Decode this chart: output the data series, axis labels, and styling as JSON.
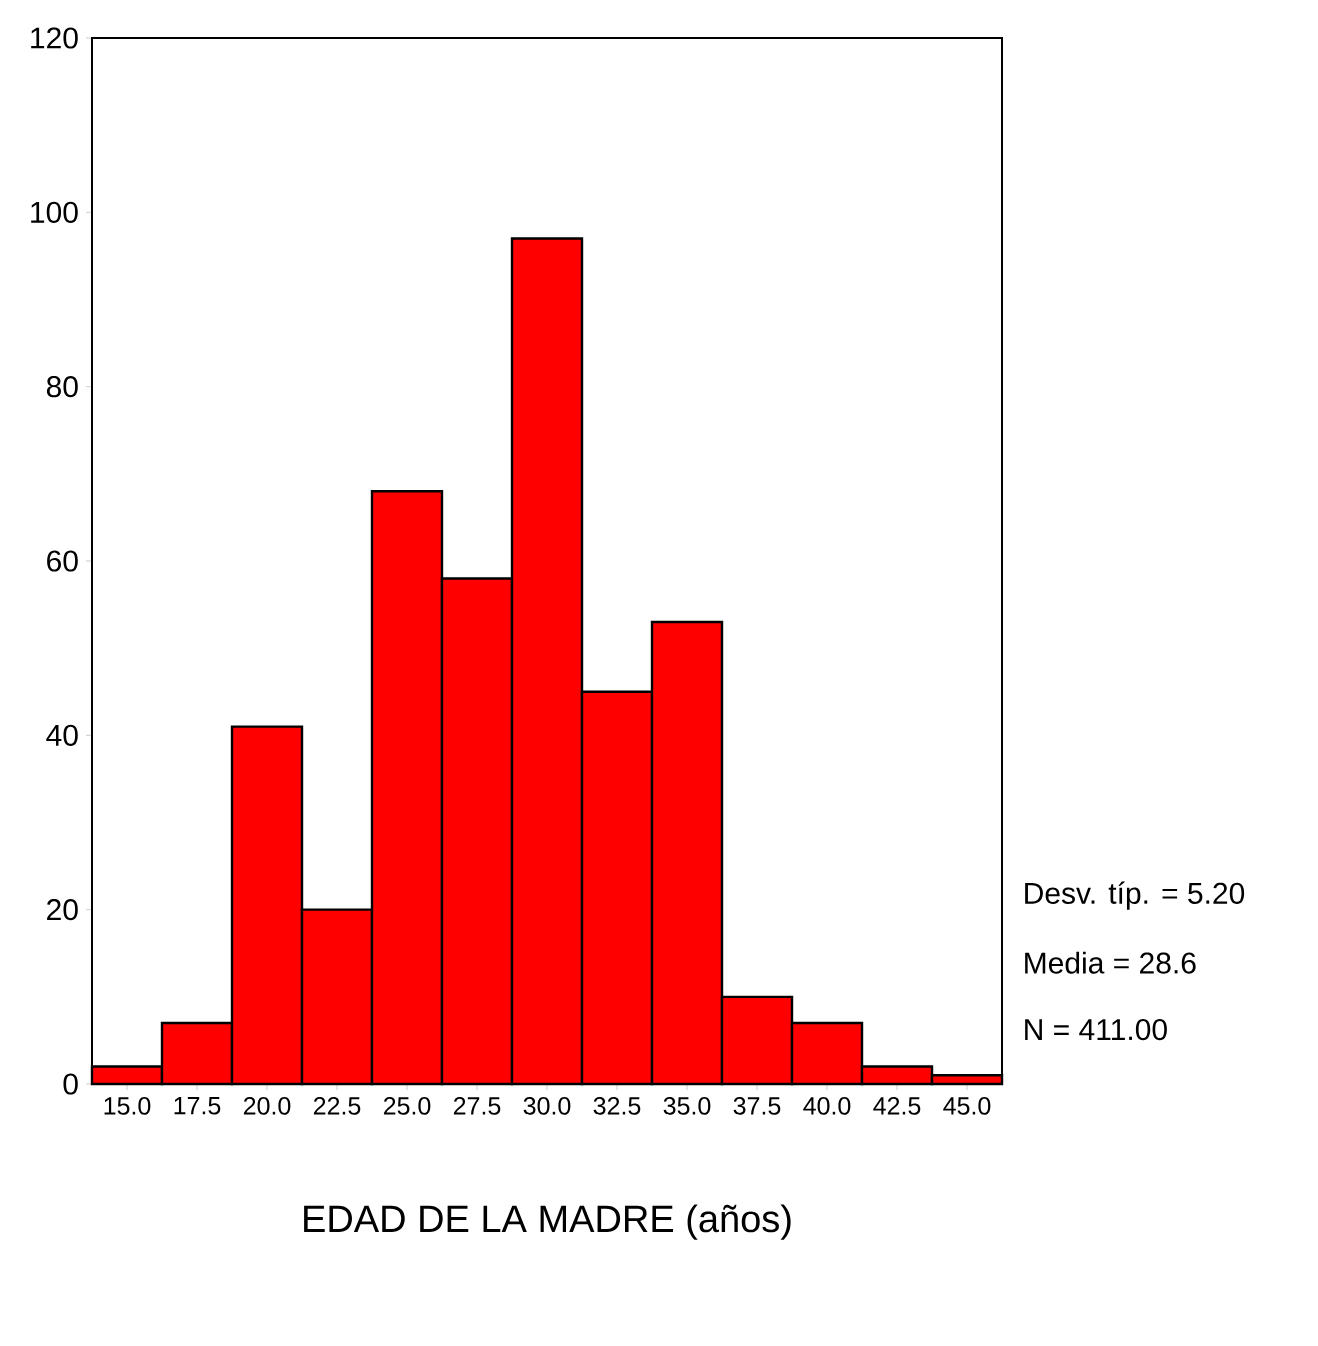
{
  "chart_data": {
    "type": "histogram",
    "xlabel": "EDAD DE LA MADRE (años)",
    "bins": [
      13.75,
      16.25,
      18.75,
      21.25,
      23.75,
      26.25,
      28.75,
      31.25,
      33.75,
      36.25,
      38.75,
      41.25,
      43.75,
      46.25
    ],
    "values": [
      2,
      7,
      41,
      20,
      68,
      58,
      97,
      45,
      53,
      10,
      7,
      2,
      1
    ],
    "color": "#ff0000",
    "xlim": [
      13.75,
      46.25
    ],
    "ylim": [
      0,
      120
    ],
    "xticks": [
      {
        "value": 15,
        "label": "15.0"
      },
      {
        "value": 17.5,
        "label": "17.5"
      },
      {
        "value": 20,
        "label": "20.0"
      },
      {
        "value": 22.5,
        "label": "22.5"
      },
      {
        "value": 25,
        "label": "25.0"
      },
      {
        "value": 27.5,
        "label": "27.5"
      },
      {
        "value": 30,
        "label": "30.0"
      },
      {
        "value": 32.5,
        "label": "32.5"
      },
      {
        "value": 35,
        "label": "35.0"
      },
      {
        "value": 37.5,
        "label": "37.5"
      },
      {
        "value": 40,
        "label": "40.0"
      },
      {
        "value": 42.5,
        "label": "42.5"
      },
      {
        "value": 45,
        "label": "45.0"
      }
    ],
    "yticks": [
      0,
      20,
      40,
      60,
      80,
      100,
      120
    ],
    "annotations": [
      "Desv. típ. = 5.20",
      "Media = 28.6",
      "N = 411.00"
    ]
  }
}
